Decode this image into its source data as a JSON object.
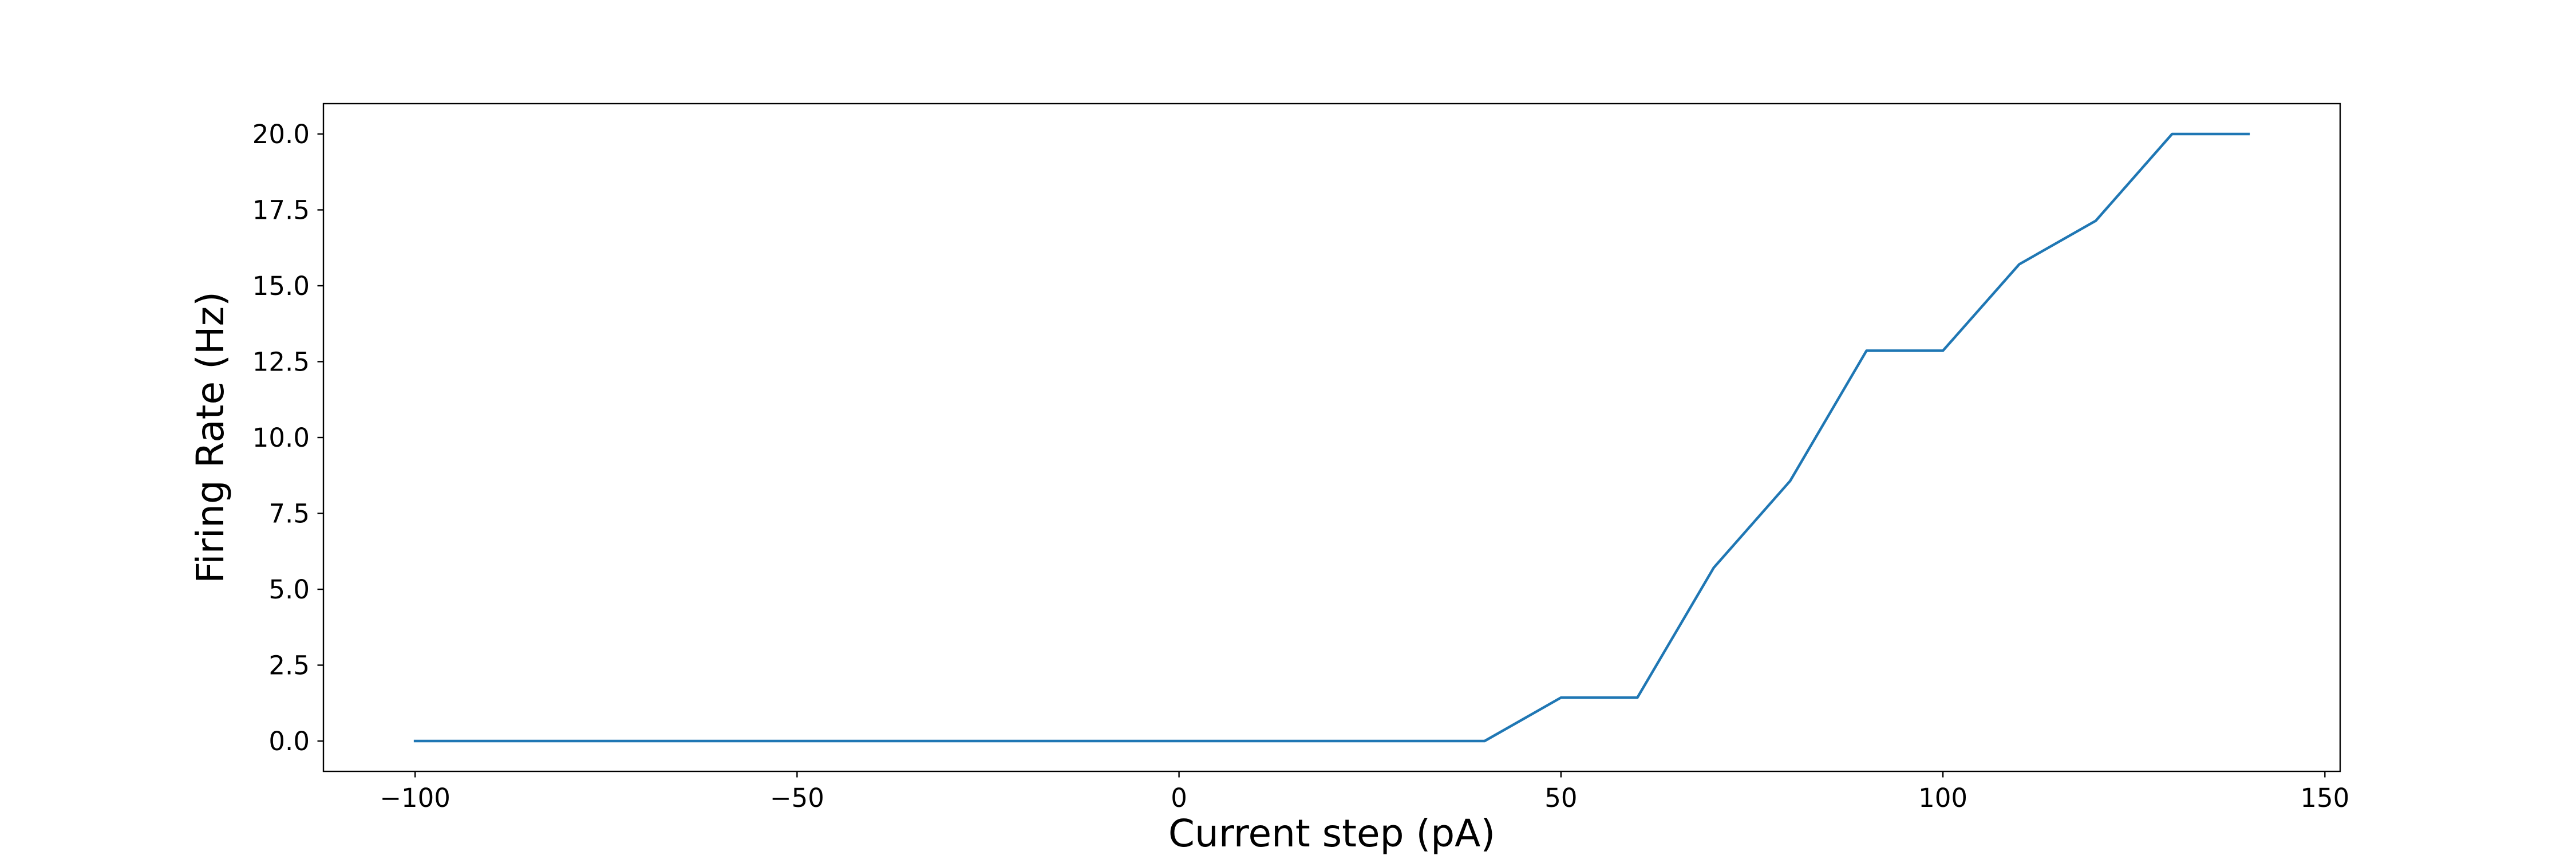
{
  "chart_data": {
    "type": "line",
    "title": "",
    "xlabel": "Current step (pA)",
    "ylabel": "Firing Rate (Hz)",
    "xlim": [
      -112,
      152
    ],
    "ylim": [
      -1.0,
      21.0
    ],
    "x_ticks": [
      -100,
      -50,
      0,
      50,
      100,
      150
    ],
    "x_tick_labels": [
      "−100",
      "−50",
      "0",
      "50",
      "100",
      "150"
    ],
    "y_ticks": [
      0,
      2.5,
      5,
      7.5,
      10,
      12.5,
      15,
      17.5,
      20
    ],
    "y_tick_labels": [
      "0.0",
      "2.5",
      "5.0",
      "7.5",
      "10.0",
      "12.5",
      "15.0",
      "17.5",
      "20.0"
    ],
    "grid": false,
    "legend": "none",
    "series": [
      {
        "color": "#1f77b4",
        "x": [
          -100,
          -90,
          -80,
          -70,
          -60,
          -50,
          -40,
          -30,
          -20,
          -10,
          0,
          10,
          20,
          30,
          40,
          50,
          60,
          70,
          80,
          90,
          100,
          110,
          120,
          130,
          140
        ],
        "y": [
          0,
          0,
          0,
          0,
          0,
          0,
          0,
          0,
          0,
          0,
          0,
          0,
          0,
          0,
          0,
          1.43,
          1.43,
          5.71,
          8.57,
          12.86,
          12.86,
          15.71,
          17.14,
          20.0,
          20.0
        ]
      }
    ]
  }
}
